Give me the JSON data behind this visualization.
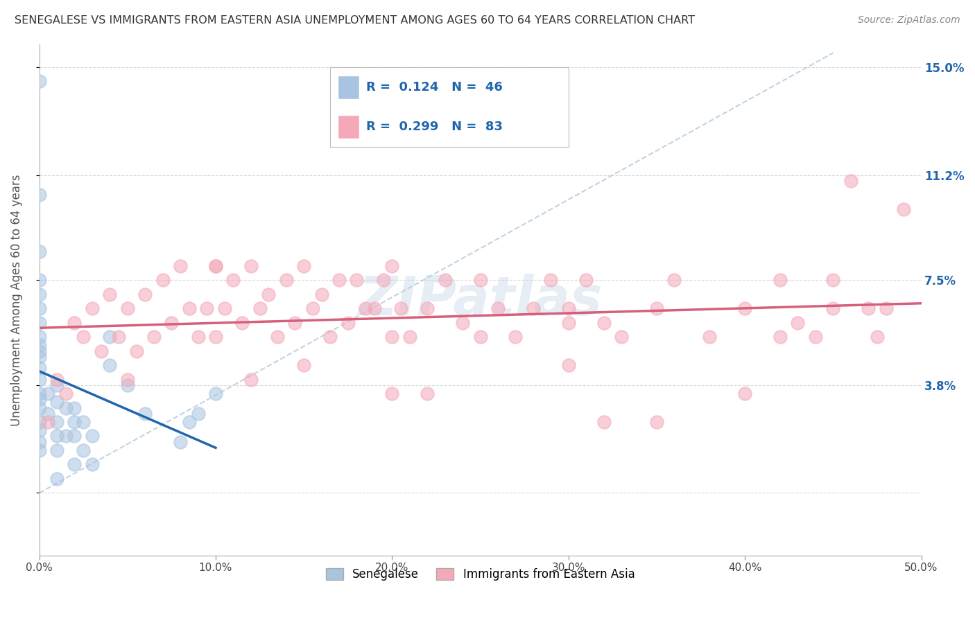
{
  "title": "SENEGALESE VS IMMIGRANTS FROM EASTERN ASIA UNEMPLOYMENT AMONG AGES 60 TO 64 YEARS CORRELATION CHART",
  "source": "Source: ZipAtlas.com",
  "ylabel": "Unemployment Among Ages 60 to 64 years",
  "xlim": [
    0.0,
    0.5
  ],
  "ylim": [
    -0.022,
    0.158
  ],
  "yticks": [
    0.0,
    0.038,
    0.075,
    0.112,
    0.15
  ],
  "right_ytick_vals": [
    0.038,
    0.075,
    0.112,
    0.15
  ],
  "right_ytick_labels": [
    "3.8%",
    "7.5%",
    "11.2%",
    "15.0%"
  ],
  "xticks": [
    0.0,
    0.1,
    0.2,
    0.3,
    0.4,
    0.5
  ],
  "xtick_labels": [
    "0.0%",
    "10.0%",
    "20.0%",
    "30.0%",
    "40.0%",
    "50.0%"
  ],
  "senegalese_x": [
    0.0,
    0.0,
    0.0,
    0.0,
    0.0,
    0.0,
    0.0,
    0.0,
    0.0,
    0.0,
    0.0,
    0.0,
    0.0,
    0.0,
    0.0,
    0.0,
    0.0,
    0.0,
    0.0,
    0.0,
    0.005,
    0.005,
    0.01,
    0.01,
    0.01,
    0.01,
    0.01,
    0.01,
    0.015,
    0.015,
    0.02,
    0.02,
    0.02,
    0.02,
    0.025,
    0.025,
    0.03,
    0.03,
    0.04,
    0.04,
    0.05,
    0.06,
    0.08,
    0.085,
    0.09,
    0.1
  ],
  "senegalese_y": [
    0.145,
    0.105,
    0.085,
    0.075,
    0.07,
    0.065,
    0.06,
    0.055,
    0.052,
    0.05,
    0.048,
    0.044,
    0.04,
    0.035,
    0.033,
    0.03,
    0.025,
    0.022,
    0.018,
    0.015,
    0.035,
    0.028,
    0.038,
    0.032,
    0.025,
    0.02,
    0.015,
    0.005,
    0.03,
    0.02,
    0.03,
    0.025,
    0.02,
    0.01,
    0.025,
    0.015,
    0.02,
    0.01,
    0.055,
    0.045,
    0.038,
    0.028,
    0.018,
    0.025,
    0.028,
    0.035
  ],
  "eastern_asia_x": [
    0.005,
    0.01,
    0.015,
    0.02,
    0.025,
    0.03,
    0.035,
    0.04,
    0.045,
    0.05,
    0.055,
    0.06,
    0.065,
    0.07,
    0.075,
    0.08,
    0.085,
    0.09,
    0.095,
    0.1,
    0.105,
    0.11,
    0.115,
    0.12,
    0.125,
    0.13,
    0.135,
    0.14,
    0.145,
    0.15,
    0.155,
    0.16,
    0.165,
    0.17,
    0.175,
    0.18,
    0.185,
    0.19,
    0.195,
    0.2,
    0.205,
    0.21,
    0.22,
    0.23,
    0.24,
    0.25,
    0.26,
    0.27,
    0.28,
    0.29,
    0.3,
    0.31,
    0.32,
    0.33,
    0.35,
    0.36,
    0.38,
    0.4,
    0.42,
    0.43,
    0.44,
    0.45,
    0.46,
    0.47,
    0.475,
    0.48,
    0.49,
    0.05,
    0.1,
    0.15,
    0.2,
    0.25,
    0.3,
    0.35,
    0.4,
    0.45,
    0.12,
    0.22,
    0.32,
    0.42,
    0.1,
    0.2,
    0.3
  ],
  "eastern_asia_y": [
    0.025,
    0.04,
    0.035,
    0.06,
    0.055,
    0.065,
    0.05,
    0.07,
    0.055,
    0.065,
    0.05,
    0.07,
    0.055,
    0.075,
    0.06,
    0.08,
    0.065,
    0.055,
    0.065,
    0.08,
    0.065,
    0.075,
    0.06,
    0.08,
    0.065,
    0.07,
    0.055,
    0.075,
    0.06,
    0.08,
    0.065,
    0.07,
    0.055,
    0.075,
    0.06,
    0.075,
    0.065,
    0.065,
    0.075,
    0.08,
    0.065,
    0.055,
    0.065,
    0.075,
    0.06,
    0.075,
    0.065,
    0.055,
    0.065,
    0.075,
    0.065,
    0.075,
    0.06,
    0.055,
    0.065,
    0.075,
    0.055,
    0.065,
    0.075,
    0.06,
    0.055,
    0.075,
    0.11,
    0.065,
    0.055,
    0.065,
    0.1,
    0.04,
    0.055,
    0.045,
    0.035,
    0.055,
    0.045,
    0.025,
    0.035,
    0.065,
    0.04,
    0.035,
    0.025,
    0.055,
    0.08,
    0.055,
    0.06
  ],
  "senegalese_color": "#a8c4e0",
  "eastern_asia_color": "#f4a8b8",
  "senegalese_line_color": "#2166ac",
  "eastern_asia_line_color": "#d6607a",
  "diagonal_color": "#b8ccdd",
  "R_senegalese": 0.124,
  "N_senegalese": 46,
  "R_eastern_asia": 0.299,
  "N_eastern_asia": 83,
  "legend_color": "#2166ac",
  "watermark_text": "ZIPatlas",
  "grid_color": "#d0d0d0"
}
